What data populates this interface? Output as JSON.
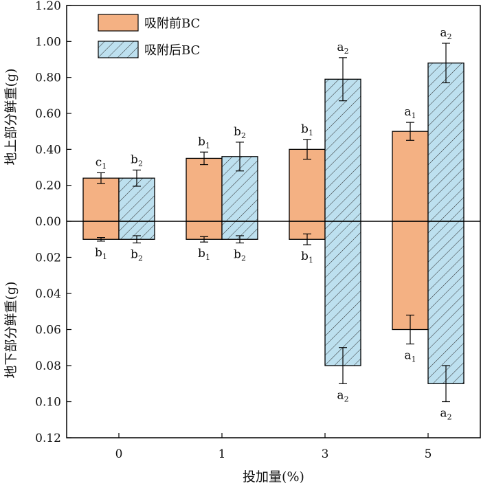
{
  "chart_data": {
    "type": "bar",
    "categories": [
      "0",
      "1",
      "3",
      "5"
    ],
    "xlabel": "投加量(%)",
    "ylabel_top": "地上部分鲜重(g)",
    "ylabel_bottom": "地下部分鲜重(g)",
    "yticks_top": [
      "1.20",
      "1.00",
      "0.80",
      "0.60",
      "0.40",
      "0.20",
      "0.00"
    ],
    "yticks_bottom": [
      "0.02",
      "0.04",
      "0.06",
      "0.08",
      "0.10",
      "0.12"
    ],
    "ylim_top": [
      0,
      1.2
    ],
    "ylim_bottom": [
      0,
      0.12
    ],
    "legend_position": "top-left",
    "series": [
      {
        "name": "吸附前BC",
        "color": "#f4b183",
        "hatch": false,
        "top_values": [
          0.24,
          0.35,
          0.4,
          0.5
        ],
        "top_errors": [
          0.03,
          0.035,
          0.055,
          0.05
        ],
        "top_labels": [
          [
            "c",
            "1"
          ],
          [
            "b",
            "1"
          ],
          [
            "b",
            "1"
          ],
          [
            "a",
            "1"
          ]
        ],
        "bottom_values": [
          0.01,
          0.01,
          0.01,
          0.06
        ],
        "bottom_errors": [
          0.001,
          0.0015,
          0.003,
          0.008
        ],
        "bottom_labels": [
          [
            "b",
            "1"
          ],
          [
            "b",
            "1"
          ],
          [
            "b",
            "1"
          ],
          [
            "a",
            "1"
          ]
        ]
      },
      {
        "name": "吸附后BC",
        "color": "#bde0ef",
        "hatch": true,
        "top_values": [
          0.24,
          0.36,
          0.79,
          0.88
        ],
        "top_errors": [
          0.045,
          0.08,
          0.12,
          0.11
        ],
        "top_labels": [
          [
            "b",
            "2"
          ],
          [
            "b",
            "2"
          ],
          [
            "a",
            "2"
          ],
          [
            "a",
            "2"
          ]
        ],
        "bottom_values": [
          0.01,
          0.01,
          0.08,
          0.09
        ],
        "bottom_errors": [
          0.002,
          0.002,
          0.01,
          0.01
        ],
        "bottom_labels": [
          [
            "b",
            "2"
          ],
          [
            "b",
            "2"
          ],
          [
            "a",
            "2"
          ],
          [
            "a",
            "2"
          ]
        ]
      }
    ]
  }
}
